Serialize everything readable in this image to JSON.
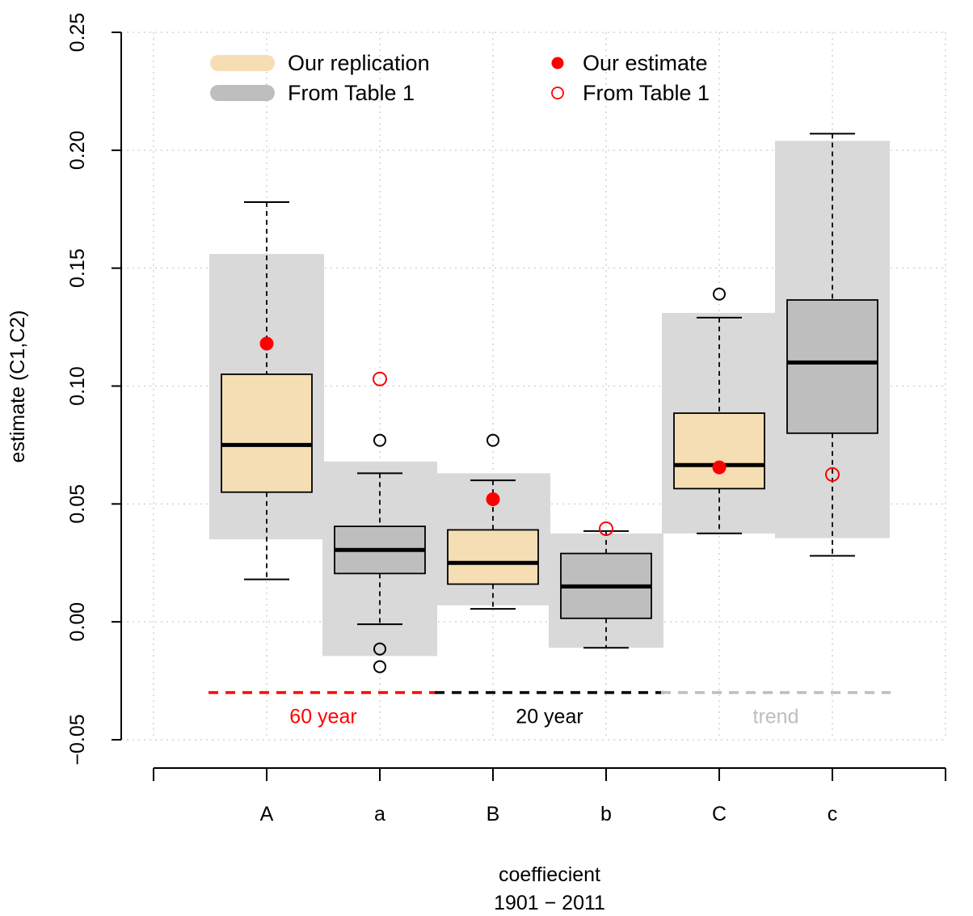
{
  "chart_data": {
    "type": "box",
    "xlabel": "coeffiecient",
    "xlabel2": "1901 − 2011",
    "ylabel": "estimate (C1,C2)",
    "ylim": [
      -0.05,
      0.25
    ],
    "yticks": [
      "−0.05",
      "0.00",
      "0.05",
      "0.10",
      "0.15",
      "0.20",
      "0.25"
    ],
    "ytick_values": [
      -0.05,
      0.0,
      0.05,
      0.1,
      0.15,
      0.2,
      0.25
    ],
    "grid": true,
    "legend_placement": "top",
    "categories": [
      "A",
      "a",
      "B",
      "b",
      "C",
      "c"
    ],
    "boxes": [
      {
        "label": "A",
        "source": "Our replication",
        "whisker_low": 0.018,
        "q1": 0.055,
        "median": 0.075,
        "q3": 0.105,
        "whisker_high": 0.178,
        "outliers": [],
        "range_low": 0.035,
        "range_high": 0.156,
        "point": 0.118,
        "point_type": "Our estimate"
      },
      {
        "label": "a",
        "source": "From Table 1",
        "whisker_low": -0.001,
        "q1": 0.0205,
        "median": 0.0305,
        "q3": 0.0405,
        "whisker_high": 0.063,
        "outliers": [
          0.077,
          -0.0115,
          -0.019
        ],
        "range_low": -0.0145,
        "range_high": 0.068,
        "point": 0.103,
        "point_type": "From Table 1"
      },
      {
        "label": "B",
        "source": "Our replication",
        "whisker_low": 0.0055,
        "q1": 0.016,
        "median": 0.025,
        "q3": 0.039,
        "whisker_high": 0.06,
        "outliers": [
          0.077
        ],
        "range_low": 0.007,
        "range_high": 0.063,
        "point": 0.052,
        "point_type": "Our estimate"
      },
      {
        "label": "b",
        "source": "From Table 1",
        "whisker_low": -0.011,
        "q1": 0.0015,
        "median": 0.015,
        "q3": 0.029,
        "whisker_high": 0.0385,
        "outliers": [],
        "range_low": -0.011,
        "range_high": 0.0375,
        "point": 0.0395,
        "point_type": "From Table 1"
      },
      {
        "label": "C",
        "source": "Our replication",
        "whisker_low": 0.0375,
        "q1": 0.0565,
        "median": 0.0665,
        "q3": 0.0885,
        "whisker_high": 0.129,
        "outliers": [
          0.139
        ],
        "range_low": 0.0375,
        "range_high": 0.131,
        "point": 0.0655,
        "point_type": "Our estimate"
      },
      {
        "label": "c",
        "source": "From Table 1",
        "whisker_low": 0.028,
        "q1": 0.08,
        "median": 0.11,
        "q3": 0.1365,
        "whisker_high": 0.207,
        "outliers": [],
        "range_low": 0.0355,
        "range_high": 0.204,
        "point": 0.0625,
        "point_type": "From Table 1"
      }
    ],
    "legend": [
      {
        "label": "Our replication",
        "kind": "band",
        "color": "#f5deb3"
      },
      {
        "label": "From Table 1",
        "kind": "band",
        "color": "#bebebe"
      },
      {
        "label": "Our estimate",
        "kind": "dot",
        "color": "#ff0000"
      },
      {
        "label": "From Table 1",
        "kind": "circle",
        "color": "#ff0000"
      }
    ],
    "groups": [
      {
        "label": "60 year",
        "color": "#ff0000",
        "from": "A",
        "to": "a",
        "y": -0.03
      },
      {
        "label": "20 year",
        "color": "#000000",
        "from": "B",
        "to": "b",
        "y": -0.03
      },
      {
        "label": "trend",
        "color": "#bebebe",
        "from": "C",
        "to": "c",
        "y": -0.03
      }
    ],
    "colors": {
      "replication_fill": "#f5deb3",
      "table_fill": "#bebebe",
      "range_band": "#d9d9d9",
      "estimate": "#ff0000",
      "grid": "#d3d3d3"
    }
  }
}
